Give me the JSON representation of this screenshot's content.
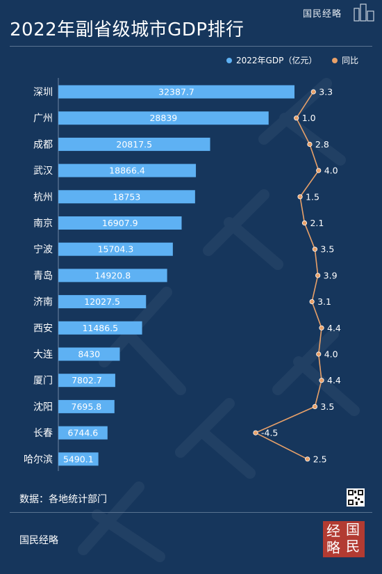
{
  "title": "2022年副省级城市GDP排行",
  "brand": "国民经略",
  "legend": {
    "gdp": "2022年GDP（亿元）",
    "yoy": "同比"
  },
  "colors": {
    "background": "#16365c",
    "bar": "#5eb1f3",
    "line": "#e9a169",
    "text": "#ffffff",
    "logo": "#b23b32"
  },
  "source": "数据：各地统计部门",
  "footer": "国民经略",
  "logo_chars": [
    "经",
    "国",
    "略",
    "民"
  ],
  "chart_data": {
    "type": "bar",
    "orientation": "horizontal",
    "title": "2022年副省级城市GDP排行",
    "categories": [
      "深圳",
      "广州",
      "成都",
      "武汉",
      "杭州",
      "南京",
      "宁波",
      "青岛",
      "济南",
      "西安",
      "大连",
      "厦门",
      "沈阳",
      "长春",
      "哈尔滨"
    ],
    "series": [
      {
        "name": "2022年GDP（亿元）",
        "type": "bar",
        "values": [
          32387.7,
          28839,
          20817.5,
          18866.4,
          18753,
          16907.9,
          15704.3,
          14920.8,
          12027.5,
          11486.5,
          8430,
          7802.7,
          7695.8,
          6744.6,
          5490.1
        ],
        "labels": [
          "32387.7",
          "28839",
          "20817.5",
          "18866.4",
          "18753",
          "16907.9",
          "15704.3",
          "14920.8",
          "12027.5",
          "11486.5",
          "8430",
          "7802.7",
          "7695.8",
          "6744.6",
          "5490.1"
        ]
      },
      {
        "name": "同比",
        "type": "line",
        "values": [
          3.3,
          1.0,
          2.8,
          4.0,
          1.5,
          2.1,
          3.5,
          3.9,
          3.1,
          4.4,
          4.0,
          4.4,
          3.5,
          -4.5,
          2.5
        ],
        "labels": [
          "3.3",
          "1.0",
          "2.8",
          "4.0",
          "1.5",
          "2.1",
          "3.5",
          "3.9",
          "3.1",
          "4.4",
          "4.0",
          "4.4",
          "3.5",
          "-4.5",
          "2.5"
        ]
      }
    ],
    "legend_position": "top-right",
    "grid": false
  }
}
